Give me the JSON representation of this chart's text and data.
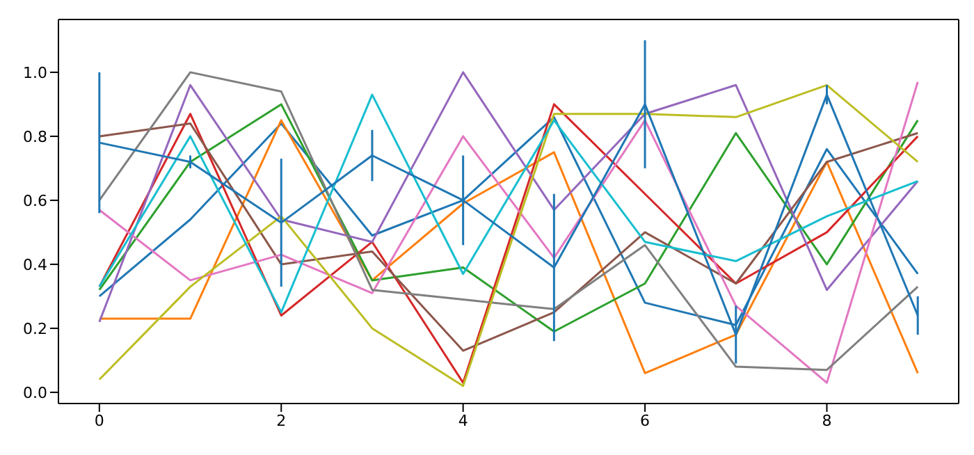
{
  "chart_data": {
    "type": "line",
    "x": [
      0,
      1,
      2,
      3,
      4,
      5,
      6,
      7,
      8,
      9
    ],
    "xlim": [
      -0.45,
      9.45
    ],
    "xticks": [
      0,
      2,
      4,
      6,
      8
    ],
    "ylim": [
      -0.035,
      1.165
    ],
    "yticks": [
      {
        "value": 0,
        "label": "0.0"
      },
      {
        "value": 0.2,
        "label": "0.2"
      },
      {
        "value": 0.4,
        "label": "0.4"
      },
      {
        "value": 0.6,
        "label": "0.6"
      },
      {
        "value": 0.8,
        "label": "0.8"
      },
      {
        "value": 1.0,
        "label": "1.0"
      }
    ],
    "line_style": "solid",
    "series": [
      {
        "color": "#1f77b4",
        "values": [
          0.3,
          0.54,
          0.84,
          0.49,
          0.6,
          0.86,
          0.28,
          0.21,
          0.76,
          0.37
        ]
      },
      {
        "color": "#ff7f0e",
        "values": [
          0.23,
          0.23,
          0.85,
          0.35,
          0.59,
          0.75,
          0.06,
          0.18,
          0.72,
          0.06
        ]
      },
      {
        "color": "#2ca02c",
        "values": [
          0.32,
          0.72,
          0.9,
          0.35,
          0.39,
          0.19,
          0.34,
          0.81,
          0.4,
          0.85
        ]
      },
      {
        "color": "#d62728",
        "values": [
          0.33,
          0.87,
          0.24,
          0.47,
          0.03,
          0.9,
          0.62,
          0.34,
          0.5,
          0.8
        ]
      },
      {
        "color": "#9467bd",
        "values": [
          0.22,
          0.96,
          0.54,
          0.47,
          1.0,
          0.57,
          0.87,
          0.96,
          0.32,
          0.66
        ]
      },
      {
        "color": "#8c564b",
        "values": [
          0.8,
          0.84,
          0.4,
          0.44,
          0.13,
          0.25,
          0.5,
          0.34,
          0.72,
          0.81
        ]
      },
      {
        "color": "#e377c2",
        "values": [
          0.57,
          0.35,
          0.43,
          0.31,
          0.8,
          0.42,
          0.85,
          0.27,
          0.03,
          0.97
        ]
      },
      {
        "color": "#7f7f7f",
        "values": [
          0.6,
          1.0,
          0.94,
          0.32,
          0.29,
          0.26,
          0.46,
          0.08,
          0.07,
          0.33
        ]
      },
      {
        "color": "#bcbd22",
        "values": [
          0.04,
          0.33,
          0.55,
          0.2,
          0.02,
          0.87,
          0.87,
          0.86,
          0.96,
          0.72
        ]
      },
      {
        "color": "#17becf",
        "values": [
          0.33,
          0.8,
          0.25,
          0.93,
          0.37,
          0.85,
          0.47,
          0.41,
          0.55,
          0.66
        ]
      },
      {
        "color": "#1f77b4",
        "values": [
          0.78,
          0.72,
          0.53,
          0.74,
          0.6,
          0.39,
          0.9,
          0.18,
          0.93,
          0.24
        ],
        "errors": [
          0.22,
          0.02,
          0.2,
          0.08,
          0.14,
          0.23,
          0.2,
          0.09,
          0.03,
          0.06
        ]
      }
    ]
  }
}
